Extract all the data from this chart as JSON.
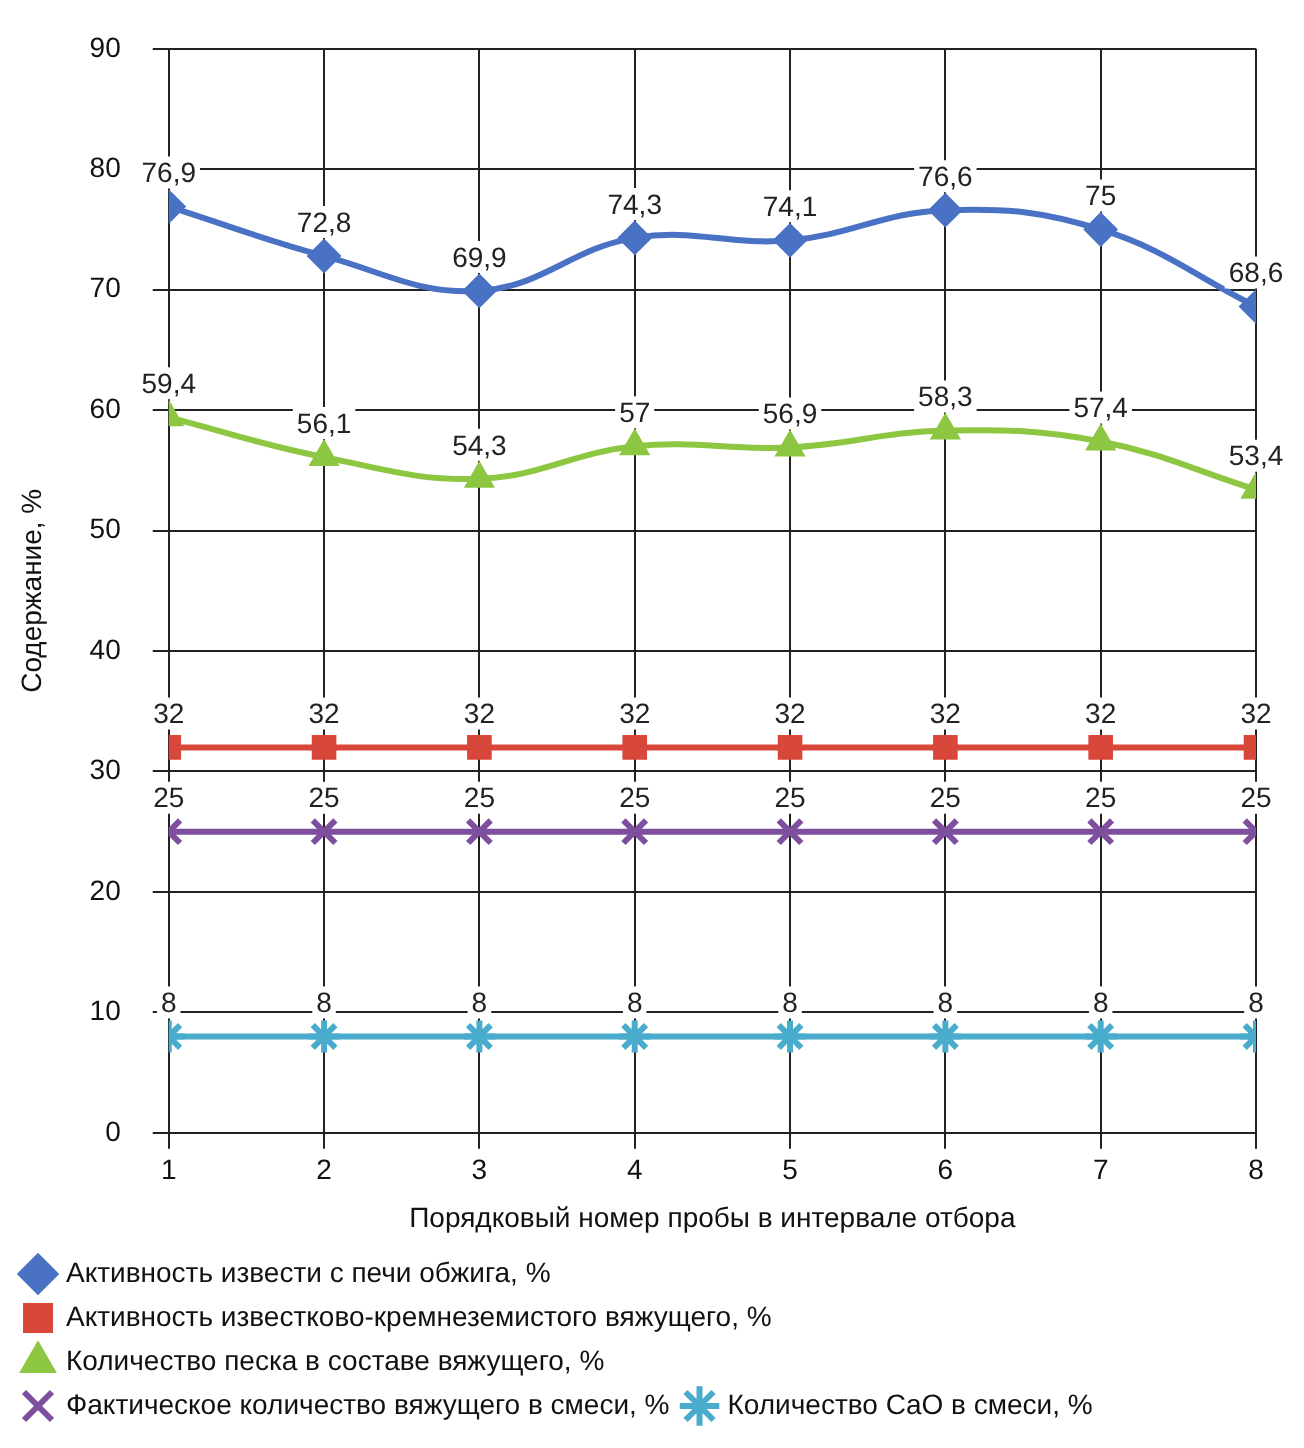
{
  "chart_data": {
    "type": "line",
    "xlabel": "Порядковый номер пробы в интервале отбора",
    "ylabel": "Содержание, %",
    "x": [
      1,
      2,
      3,
      4,
      5,
      6,
      7,
      8
    ],
    "xlim": [
      1,
      8
    ],
    "xticks": [
      1,
      2,
      3,
      4,
      5,
      6,
      7,
      8
    ],
    "ylim": [
      0,
      90
    ],
    "yticks": [
      0,
      10,
      20,
      30,
      40,
      50,
      60,
      70,
      80,
      90
    ],
    "grid": true,
    "legend": "bottom",
    "series": [
      {
        "name": "Активность извести с печи обжига, %",
        "color": "#4a72c4",
        "marker": "diamond",
        "values": [
          76.9,
          72.8,
          69.9,
          74.3,
          74.1,
          76.6,
          75,
          68.6
        ],
        "value_labels": [
          "76,9",
          "72,8",
          "69,9",
          "74,3",
          "74,1",
          "76,6",
          "75",
          "68,6"
        ]
      },
      {
        "name": "Активность известково-кремнеземистого вяжущего, %",
        "color": "#d9463a",
        "marker": "square",
        "values": [
          32,
          32,
          32,
          32,
          32,
          32,
          32,
          32
        ],
        "value_labels": [
          "32",
          "32",
          "32",
          "32",
          "32",
          "32",
          "32",
          "32"
        ]
      },
      {
        "name": "Количество песка в составе вяжущего, %",
        "color": "#8dc641",
        "marker": "triangle",
        "values": [
          59.4,
          56.1,
          54.3,
          57,
          56.9,
          58.3,
          57.4,
          53.4
        ],
        "value_labels": [
          "59,4",
          "56,1",
          "54,3",
          "57",
          "56,9",
          "58,3",
          "57,4",
          "53,4"
        ]
      },
      {
        "name": "Фактическое количество вяжущего в смеси, %",
        "color": "#7f4f9f",
        "marker": "cross",
        "values": [
          25,
          25,
          25,
          25,
          25,
          25,
          25,
          25
        ],
        "value_labels": [
          "25",
          "25",
          "25",
          "25",
          "25",
          "25",
          "25",
          "25"
        ]
      },
      {
        "name": "Количество CaO в смеси, %",
        "color": "#4aaccc",
        "marker": "cross",
        "values": [
          8,
          8,
          8,
          8,
          8,
          8,
          8,
          8
        ],
        "value_labels": [
          "8",
          "8",
          "8",
          "8",
          "8",
          "8",
          "8",
          "8"
        ]
      }
    ]
  }
}
